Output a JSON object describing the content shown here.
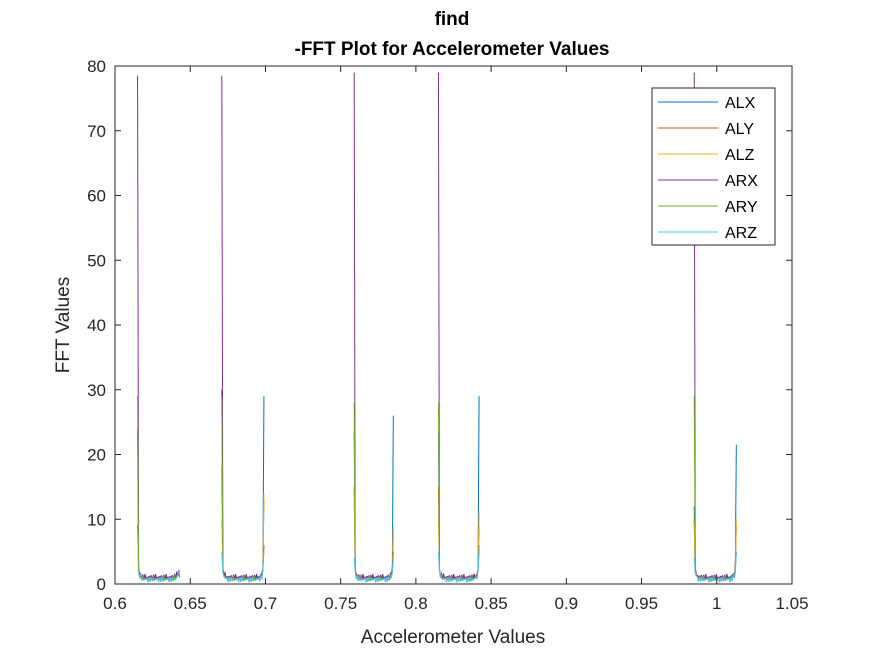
{
  "chart_data": {
    "type": "line",
    "title": [
      "find",
      "-FFT Plot for Accelerometer Values"
    ],
    "xlabel": "Accelerometer Values",
    "ylabel": "FFT Values",
    "xlim": [
      0.6,
      1.05
    ],
    "ylim": [
      0,
      80
    ],
    "xticks": [
      "0.6",
      "0.65",
      "0.7",
      "0.75",
      "0.8",
      "0.85",
      "0.9",
      "0.95",
      "1",
      "1.05"
    ],
    "yticks": [
      "0",
      "10",
      "20",
      "30",
      "40",
      "50",
      "60",
      "70",
      "80"
    ],
    "grid": false,
    "legend_position": "top-right",
    "clusters": [
      {
        "start": 0.615,
        "end": 0.643,
        "peaks": {
          "ALX": [
            24,
            2
          ],
          "ALY": [
            9,
            1
          ],
          "ALZ": [
            8,
            1
          ],
          "ARX": [
            78.5,
            1
          ],
          "ARY": [
            29,
            1
          ],
          "ARZ": [
            2,
            2
          ]
        }
      },
      {
        "start": 0.671,
        "end": 0.699,
        "peaks": {
          "ALX": [
            30,
            29
          ],
          "ALY": [
            18,
            13
          ],
          "ALZ": [
            10,
            14
          ],
          "ARX": [
            78.5,
            6
          ],
          "ARY": [
            29,
            6
          ],
          "ARZ": [
            5,
            5
          ]
        }
      },
      {
        "start": 0.759,
        "end": 0.785,
        "peaks": {
          "ALX": [
            23.5,
            26
          ],
          "ALY": [
            15,
            8
          ],
          "ALZ": [
            14,
            9
          ],
          "ARX": [
            79,
            5
          ],
          "ARY": [
            28,
            5
          ],
          "ARZ": [
            4,
            4
          ]
        }
      },
      {
        "start": 0.815,
        "end": 0.842,
        "peaks": {
          "ALX": [
            23.5,
            29
          ],
          "ALY": [
            15,
            9
          ],
          "ALZ": [
            10,
            11
          ],
          "ARX": [
            79,
            6
          ],
          "ARY": [
            28,
            6
          ],
          "ARZ": [
            5,
            5
          ]
        }
      },
      {
        "start": 0.985,
        "end": 1.013,
        "peaks": {
          "ALX": [
            12,
            21.5
          ],
          "ALY": [
            10,
            9
          ],
          "ALZ": [
            9,
            10
          ],
          "ARX": [
            79,
            5
          ],
          "ARY": [
            29,
            5
          ],
          "ARZ": [
            4,
            5
          ]
        }
      }
    ],
    "series": [
      {
        "name": "ALX",
        "color": "#0072BD"
      },
      {
        "name": "ALY",
        "color": "#D95319"
      },
      {
        "name": "ALZ",
        "color": "#EDB120"
      },
      {
        "name": "ARX",
        "color": "#7E2F8E"
      },
      {
        "name": "ARY",
        "color": "#77AC30"
      },
      {
        "name": "ARZ",
        "color": "#4DBEEE"
      }
    ]
  }
}
